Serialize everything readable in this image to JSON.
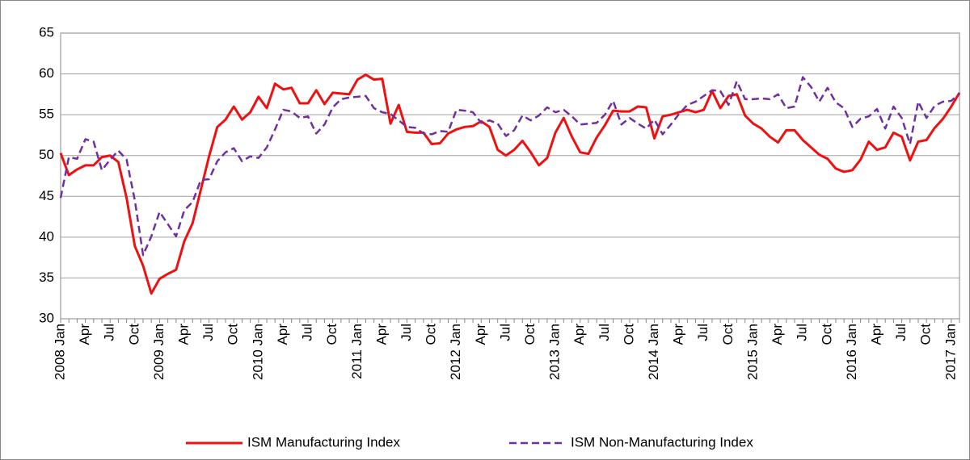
{
  "chart_data": {
    "type": "line",
    "categories": [
      "2008 Jan",
      null,
      null,
      "Apr",
      null,
      null,
      "Jul",
      null,
      null,
      "Oct",
      null,
      null,
      "2009 Jan",
      null,
      null,
      "Apr",
      null,
      null,
      "Jul",
      null,
      null,
      "Oct",
      null,
      null,
      "2010 Jan",
      null,
      null,
      "Apr",
      null,
      null,
      "Jul",
      null,
      null,
      "Oct",
      null,
      null,
      "2011 Jan",
      null,
      null,
      "Apr",
      null,
      null,
      "Jul",
      null,
      null,
      "Oct",
      null,
      null,
      "2012 Jan",
      null,
      null,
      "Apr",
      null,
      null,
      "Jul",
      null,
      null,
      "Oct",
      null,
      null,
      "2013 Jan",
      null,
      null,
      "Apr",
      null,
      null,
      "Jul",
      null,
      null,
      "Oct",
      null,
      null,
      "2014 Jan",
      null,
      null,
      "Apr",
      null,
      null,
      "Jul",
      null,
      null,
      "Oct",
      null,
      null,
      "2015 Jan",
      null,
      null,
      "Apr",
      null,
      null,
      "Jul",
      null,
      null,
      "Oct",
      null,
      null,
      "2016 Jan",
      null,
      null,
      "Apr",
      null,
      null,
      "Jul",
      null,
      null,
      "Oct",
      null,
      null,
      "2017 Jan",
      null
    ],
    "series": [
      {
        "name": "ISM Manufacturing Index",
        "color": "#ee1111",
        "dashed": false,
        "values": [
          50.3,
          47.6,
          48.3,
          48.8,
          48.8,
          49.8,
          50.0,
          49.2,
          44.8,
          38.9,
          36.5,
          33.1,
          34.9,
          35.5,
          36.0,
          39.5,
          41.7,
          45.8,
          49.9,
          53.5,
          54.4,
          56.0,
          54.4,
          55.3,
          57.2,
          55.8,
          58.8,
          58.1,
          58.3,
          56.4,
          56.4,
          58.0,
          56.3,
          57.7,
          57.6,
          57.5,
          59.3,
          59.9,
          59.3,
          59.4,
          53.9,
          56.2,
          52.9,
          52.8,
          52.8,
          51.4,
          51.5,
          52.7,
          53.2,
          53.5,
          53.6,
          54.2,
          53.5,
          50.7,
          50.0,
          50.7,
          51.8,
          50.4,
          48.8,
          49.7,
          52.8,
          54.6,
          52.3,
          50.4,
          50.2,
          52.2,
          53.7,
          55.5,
          55.4,
          55.4,
          56.0,
          55.9,
          52.1,
          54.8,
          55.0,
          55.3,
          55.6,
          55.3,
          55.6,
          57.9,
          55.8,
          57.3,
          57.5,
          54.9,
          53.9,
          53.3,
          52.3,
          51.6,
          53.1,
          53.1,
          51.9,
          51.0,
          50.1,
          49.6,
          48.4,
          48.0,
          48.2,
          49.5,
          51.7,
          50.7,
          51.0,
          52.8,
          52.3,
          49.4,
          51.7,
          51.9,
          53.4,
          54.5,
          56.0,
          57.7
        ]
      },
      {
        "name": "ISM Non-Manufacturing Index",
        "color": "#7030a0",
        "dashed": true,
        "values": [
          44.8,
          49.8,
          49.6,
          52.0,
          51.7,
          48.2,
          49.5,
          50.6,
          49.5,
          44.5,
          37.8,
          40.1,
          43.1,
          41.6,
          40.1,
          43.3,
          44.3,
          47.0,
          47.1,
          49.3,
          50.4,
          50.9,
          49.3,
          49.9,
          49.7,
          51.0,
          53.2,
          55.6,
          55.4,
          54.6,
          54.8,
          52.7,
          53.8,
          55.9,
          56.9,
          57.1,
          57.2,
          57.3,
          55.8,
          55.3,
          55.1,
          54.3,
          53.5,
          53.4,
          52.7,
          52.6,
          53.0,
          52.9,
          55.6,
          55.5,
          55.3,
          54.0,
          54.3,
          53.9,
          52.4,
          53.1,
          54.9,
          54.3,
          54.9,
          55.9,
          55.3,
          55.6,
          54.8,
          53.8,
          53.9,
          54.0,
          55.0,
          56.7,
          53.8,
          54.6,
          53.9,
          53.3,
          54.4,
          52.6,
          53.8,
          55.1,
          56.2,
          56.6,
          57.3,
          58.0,
          57.9,
          56.2,
          59.1,
          56.9,
          56.9,
          57.0,
          56.9,
          57.5,
          55.8,
          56.0,
          59.6,
          58.4,
          56.6,
          58.3,
          56.5,
          55.8,
          53.5,
          54.5,
          54.8,
          55.7,
          53.3,
          56.0,
          54.6,
          51.4,
          56.6,
          54.6,
          56.1,
          56.6,
          56.7,
          57.6
        ]
      }
    ],
    "ylim": [
      30,
      65
    ],
    "yticks": [
      30,
      35,
      40,
      45,
      50,
      55,
      60,
      65
    ],
    "grid": true,
    "legend": "bottom"
  }
}
